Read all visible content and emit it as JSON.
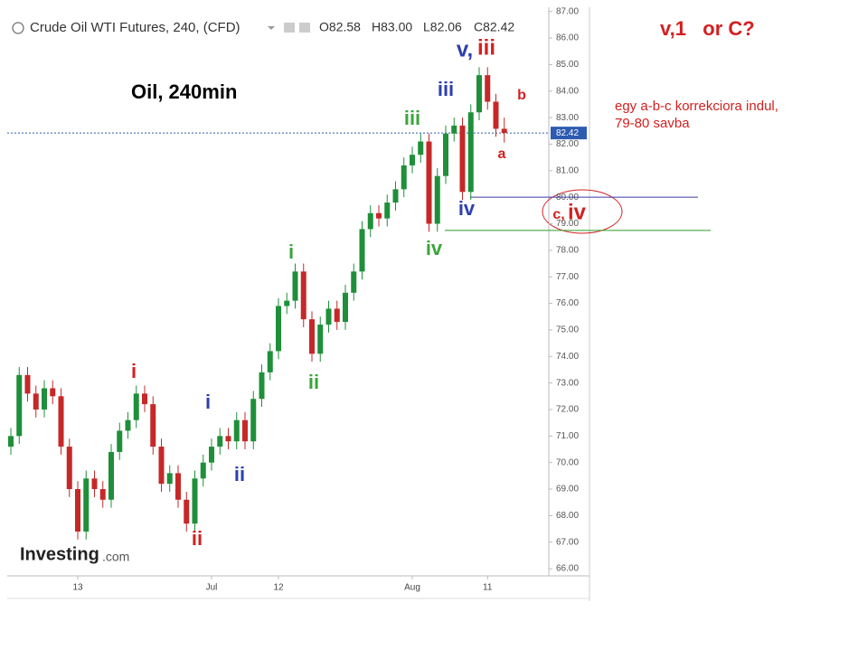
{
  "chart_data": {
    "type": "candlestick",
    "title": "Oil, 240min",
    "instrument": "Crude Oil WTI Futures, 240, (CFD)",
    "ohlc_legend": [
      "O82.58",
      "H83.00",
      "L82.06",
      "C82.42"
    ],
    "watermark": [
      "Investing",
      ".com"
    ],
    "categories": [
      null,
      null,
      null,
      null,
      null,
      null,
      null,
      null,
      "13",
      null,
      null,
      null,
      null,
      null,
      null,
      null,
      null,
      null,
      null,
      null,
      null,
      null,
      null,
      null,
      "Jul",
      null,
      null,
      null,
      null,
      null,
      null,
      null,
      "12",
      null,
      null,
      null,
      null,
      null,
      null,
      null,
      null,
      null,
      null,
      null,
      null,
      null,
      null,
      null,
      "Aug",
      null,
      null,
      null,
      null,
      null,
      null,
      null,
      null,
      "11",
      null,
      null
    ],
    "open": [
      70.6,
      71.0,
      73.3,
      72.6,
      72.0,
      72.8,
      72.5,
      70.6,
      69.0,
      67.4,
      69.4,
      69.0,
      68.6,
      70.4,
      71.2,
      71.6,
      72.6,
      72.2,
      70.6,
      69.2,
      69.6,
      68.6,
      67.7,
      69.4,
      70.0,
      70.6,
      71.0,
      70.8,
      71.6,
      70.8,
      72.4,
      73.4,
      74.2,
      75.9,
      76.1,
      77.2,
      75.4,
      74.1,
      75.2,
      75.8,
      75.3,
      76.4,
      77.2,
      78.8,
      79.4,
      79.2,
      79.8,
      80.3,
      81.2,
      81.6,
      82.1,
      79.0,
      80.8,
      82.4,
      82.7,
      80.2,
      83.2,
      84.6,
      83.6,
      82.58
    ],
    "high": [
      71.3,
      73.6,
      73.6,
      72.9,
      73.1,
      73.1,
      72.8,
      70.9,
      69.3,
      69.7,
      69.7,
      69.3,
      70.7,
      71.5,
      71.9,
      72.9,
      72.9,
      72.5,
      70.9,
      69.9,
      69.9,
      68.9,
      69.7,
      70.3,
      70.9,
      71.3,
      71.3,
      71.9,
      71.9,
      72.7,
      73.7,
      74.5,
      76.2,
      76.4,
      77.5,
      77.5,
      75.7,
      75.5,
      76.1,
      76.1,
      76.7,
      77.5,
      79.1,
      79.7,
      79.7,
      80.1,
      80.6,
      81.5,
      81.9,
      82.4,
      82.4,
      81.1,
      82.7,
      83.0,
      83.0,
      83.5,
      84.9,
      84.9,
      83.9,
      83.0
    ],
    "low": [
      70.3,
      70.7,
      72.3,
      71.7,
      71.7,
      72.2,
      70.3,
      68.7,
      67.1,
      67.1,
      68.7,
      68.3,
      68.3,
      70.1,
      70.9,
      71.3,
      71.9,
      70.3,
      68.9,
      68.9,
      68.3,
      67.4,
      67.4,
      69.1,
      69.7,
      70.3,
      70.5,
      70.5,
      70.5,
      70.5,
      72.1,
      73.1,
      73.9,
      75.6,
      75.8,
      75.1,
      73.8,
      73.8,
      74.9,
      75.0,
      75.0,
      76.1,
      76.9,
      78.5,
      78.9,
      78.9,
      79.5,
      80.0,
      80.9,
      81.3,
      78.7,
      78.7,
      80.5,
      82.1,
      79.9,
      79.9,
      82.9,
      83.3,
      82.28,
      82.06
    ],
    "close": [
      71.0,
      73.3,
      72.6,
      72.0,
      72.8,
      72.5,
      70.6,
      69.0,
      67.4,
      69.4,
      69.0,
      68.6,
      70.4,
      71.2,
      71.6,
      72.6,
      72.2,
      70.6,
      69.2,
      69.6,
      68.6,
      67.7,
      69.4,
      70.0,
      70.6,
      71.0,
      70.8,
      71.6,
      70.8,
      72.4,
      73.4,
      74.2,
      75.9,
      76.1,
      77.2,
      75.4,
      74.1,
      75.2,
      75.8,
      75.3,
      76.4,
      77.2,
      78.8,
      79.4,
      79.2,
      79.8,
      80.3,
      81.2,
      81.6,
      82.1,
      79.0,
      80.8,
      82.4,
      82.7,
      80.2,
      83.2,
      84.6,
      83.6,
      82.58,
      82.42
    ],
    "up_color": "#1f8f3a",
    "down_color": "#c62828",
    "ylim": [
      65.73,
      86.99
    ],
    "yticks": [
      {
        "value": 66,
        "label": "66.00"
      },
      {
        "value": 67,
        "label": "67.00"
      },
      {
        "value": 68,
        "label": "68.00"
      },
      {
        "value": 69,
        "label": "69.00"
      },
      {
        "value": 70,
        "label": "70.00"
      },
      {
        "value": 71,
        "label": "71.00"
      },
      {
        "value": 72,
        "label": "72.00"
      },
      {
        "value": 73,
        "label": "73.00"
      },
      {
        "value": 74,
        "label": "74.00"
      },
      {
        "value": 75,
        "label": "75.00"
      },
      {
        "value": 76,
        "label": "76.00"
      },
      {
        "value": 77,
        "label": "77.00"
      },
      {
        "value": 78,
        "label": "78.00"
      },
      {
        "value": 79,
        "label": "79.00"
      },
      {
        "value": 80,
        "label": "80.00"
      },
      {
        "value": 81,
        "label": "81.00"
      },
      {
        "value": 82,
        "label": "82.00"
      },
      {
        "value": 83,
        "label": "83.00"
      },
      {
        "value": 84,
        "label": "84.00"
      },
      {
        "value": 85,
        "label": "85.00"
      },
      {
        "value": 86,
        "label": "86.00"
      },
      {
        "value": 87,
        "label": "87.00"
      }
    ],
    "last_price": {
      "value": 82.42,
      "label": "82.42"
    },
    "levels": [
      {
        "value": 80.0,
        "color": "#3a3aa8"
      },
      {
        "value": 78.75,
        "color": "#2e9e2e"
      }
    ],
    "annotations": [
      {
        "text": "i",
        "color": "#d32020"
      },
      {
        "text": "ii",
        "color": "#d32020"
      },
      {
        "text": "i",
        "color": "#2d3fae"
      },
      {
        "text": "ii",
        "color": "#2d3fae"
      },
      {
        "text": "i",
        "color": "#3aa53a"
      },
      {
        "text": "ii",
        "color": "#3aa53a"
      },
      {
        "text": "iii",
        "color": "#3aa53a"
      },
      {
        "text": "iv",
        "color": "#3aa53a"
      },
      {
        "text": "iii",
        "color": "#2d3fae"
      },
      {
        "text": "iv",
        "color": "#2d3fae"
      },
      {
        "text": "v,",
        "color": "#2d3fae"
      },
      {
        "text": "iii",
        "color": "#d32020"
      },
      {
        "text": "b",
        "color": "#d32020"
      },
      {
        "text": "a",
        "color": "#d32020"
      },
      {
        "text": "c,",
        "color": "#d32020"
      },
      {
        "text": "iv",
        "color": "#d32020"
      }
    ],
    "question": "v,1   or C?",
    "comment": [
      "egy a-b-c korrekciora indul,",
      "79-80 savba"
    ]
  }
}
